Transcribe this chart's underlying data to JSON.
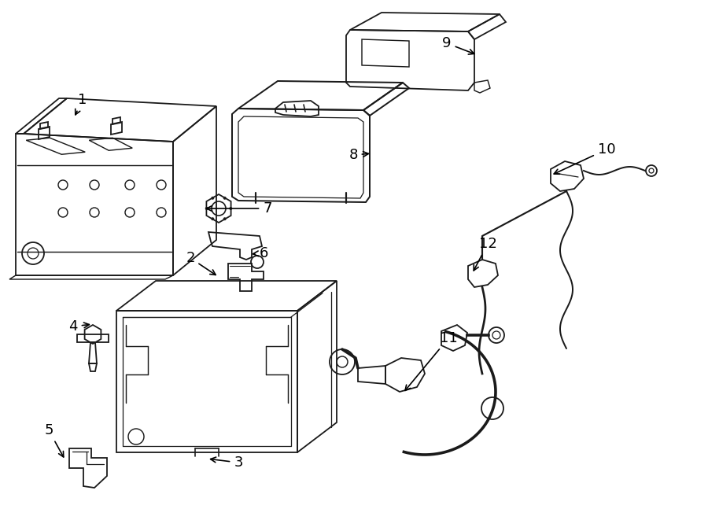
{
  "background_color": "#ffffff",
  "line_color": "#1a1a1a",
  "text_color": "#000000",
  "figsize": [
    9.0,
    6.61
  ],
  "dpi": 100,
  "lw": 1.3,
  "label_fontsize": 13
}
